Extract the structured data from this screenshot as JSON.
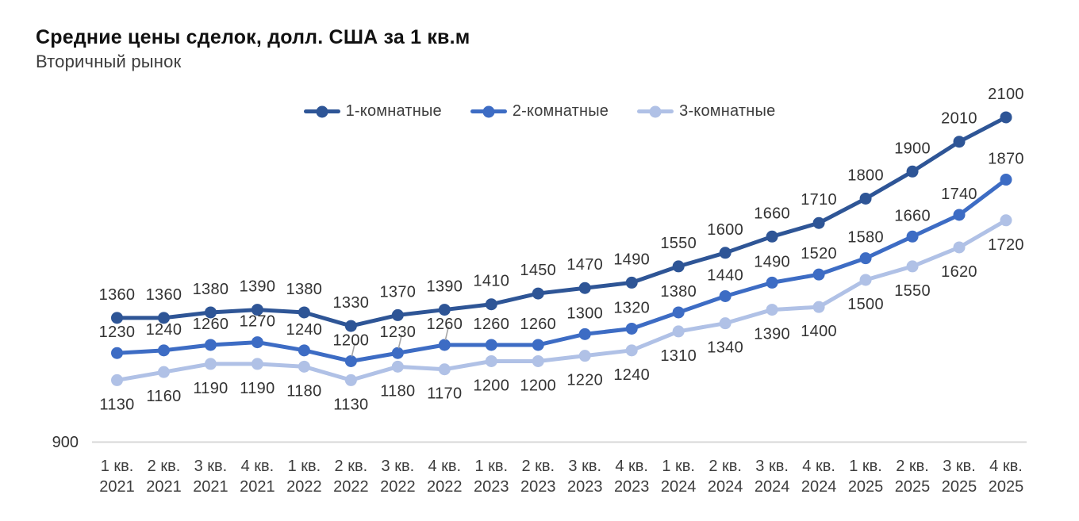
{
  "title": "Средние цены сделок, долл. США за 1 кв.м",
  "subtitle": "Вторичный рынок",
  "chart_data": {
    "type": "line",
    "title": "Средние цены сделок, долл. США за 1 кв.м",
    "subtitle": "Вторичный рынок",
    "legend_position": "top",
    "grid": false,
    "x": [
      {
        "quarter": "1 кв.",
        "year": "2021"
      },
      {
        "quarter": "2 кв.",
        "year": "2021"
      },
      {
        "quarter": "3 кв.",
        "year": "2021"
      },
      {
        "quarter": "4 кв.",
        "year": "2021"
      },
      {
        "quarter": "1 кв.",
        "year": "2022"
      },
      {
        "quarter": "2 кв.",
        "year": "2022"
      },
      {
        "quarter": "3 кв.",
        "year": "2022"
      },
      {
        "quarter": "4 кв.",
        "year": "2022"
      },
      {
        "quarter": "1 кв.",
        "year": "2023"
      },
      {
        "quarter": "2 кв.",
        "year": "2023"
      },
      {
        "quarter": "3 кв.",
        "year": "2023"
      },
      {
        "quarter": "4 кв.",
        "year": "2023"
      },
      {
        "quarter": "1 кв.",
        "year": "2024"
      },
      {
        "quarter": "2 кв.",
        "year": "2024"
      },
      {
        "quarter": "3 кв.",
        "year": "2024"
      },
      {
        "quarter": "4 кв.",
        "year": "2024"
      },
      {
        "quarter": "1 кв.",
        "year": "2025"
      },
      {
        "quarter": "2 кв.",
        "year": "2025"
      },
      {
        "quarter": "3 кв.",
        "year": "2025"
      },
      {
        "quarter": "4 кв.",
        "year": "2025"
      }
    ],
    "series": [
      {
        "name": "1-комнатные",
        "color": "#2e5596",
        "label_position": "above",
        "values": [
          1360,
          1360,
          1380,
          1390,
          1380,
          1330,
          1370,
          1390,
          1410,
          1450,
          1470,
          1490,
          1550,
          1600,
          1660,
          1710,
          1800,
          1900,
          2010,
          2100
        ]
      },
      {
        "name": "2-комнатные",
        "color": "#3d6cc4",
        "label_position": "above",
        "leader_indices": [
          5,
          6,
          7
        ],
        "values": [
          1230,
          1240,
          1260,
          1270,
          1240,
          1200,
          1230,
          1260,
          1260,
          1260,
          1300,
          1320,
          1380,
          1440,
          1490,
          1520,
          1580,
          1660,
          1740,
          1870
        ]
      },
      {
        "name": "3-комнатные",
        "color": "#b0c1e6",
        "label_position": "below",
        "values": [
          1130,
          1160,
          1190,
          1190,
          1180,
          1130,
          1180,
          1170,
          1200,
          1200,
          1220,
          1240,
          1310,
          1340,
          1390,
          1400,
          1500,
          1550,
          1620,
          1720
        ]
      }
    ],
    "y_axis": {
      "baseline_label": "900",
      "ylim": [
        900,
        2200
      ]
    },
    "colors": {
      "data_label": "#333333",
      "tick_label": "#3d3d3d",
      "axis_line": "#d7d7d7",
      "leader_line": "#a6a6a6"
    }
  }
}
